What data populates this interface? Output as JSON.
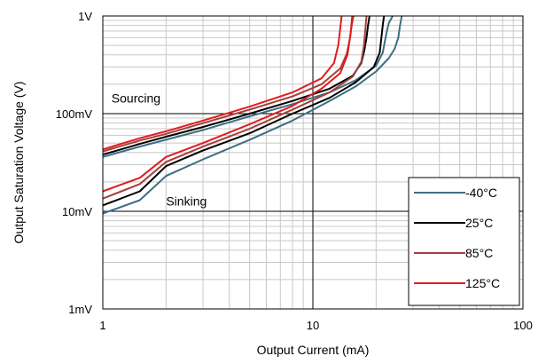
{
  "chart_data": {
    "type": "line",
    "title": "",
    "xlabel": "Output Current (mA)",
    "ylabel": "Output Saturation Voltage (V)",
    "xscale": "log",
    "yscale": "log",
    "xlim": [
      1,
      100
    ],
    "ylim": [
      0.001,
      1
    ],
    "x_ticks": [
      {
        "value": 1,
        "label": "1"
      },
      {
        "value": 10,
        "label": "10"
      },
      {
        "value": 100,
        "label": "100"
      }
    ],
    "y_ticks": [
      {
        "value": 0.001,
        "label": "1mV"
      },
      {
        "value": 0.01,
        "label": "10mV"
      },
      {
        "value": 0.1,
        "label": "100mV"
      },
      {
        "value": 1,
        "label": "1V"
      }
    ],
    "grid": true,
    "legend_position": "bottom-right",
    "annotations": [
      {
        "text": "Sourcing",
        "x": 1.1,
        "y": 0.13
      },
      {
        "text": "Sinking",
        "x": 2.0,
        "y": 0.0115
      }
    ],
    "series": [
      {
        "name": "-40°C",
        "color": "#3d6e82",
        "sourcing": {
          "x": [
            1,
            1.5,
            2,
            3,
            5,
            8,
            12,
            16,
            20,
            21.5,
            22,
            22.5,
            23,
            24
          ],
          "y": [
            0.036,
            0.046,
            0.054,
            0.068,
            0.094,
            0.125,
            0.165,
            0.22,
            0.31,
            0.42,
            0.55,
            0.7,
            0.85,
            1.0
          ]
        },
        "sinking": {
          "x": [
            1,
            1.5,
            2,
            3,
            5,
            8,
            12,
            16,
            20,
            23,
            24.5,
            25.5,
            26,
            26.5
          ],
          "y": [
            0.0095,
            0.013,
            0.023,
            0.034,
            0.054,
            0.085,
            0.135,
            0.19,
            0.27,
            0.37,
            0.46,
            0.6,
            0.8,
            1.0
          ]
        }
      },
      {
        "name": "25°C",
        "color": "#000000",
        "sourcing": {
          "x": [
            1,
            1.5,
            2,
            3,
            5,
            8,
            12,
            15.5,
            17,
            17.6,
            18,
            18.3,
            18.6
          ],
          "y": [
            0.038,
            0.049,
            0.058,
            0.073,
            0.1,
            0.135,
            0.18,
            0.245,
            0.33,
            0.45,
            0.6,
            0.8,
            1.0
          ]
        },
        "sinking": {
          "x": [
            1,
            1.5,
            2,
            3,
            5,
            8,
            12,
            16,
            19.5,
            20.8,
            21.2,
            21.5,
            21.8
          ],
          "y": [
            0.0115,
            0.016,
            0.029,
            0.042,
            0.063,
            0.1,
            0.145,
            0.21,
            0.3,
            0.42,
            0.6,
            0.8,
            1.0
          ]
        }
      },
      {
        "name": "85°C",
        "color": "#a53e3e",
        "sourcing": {
          "x": [
            1,
            1.5,
            2,
            3,
            5,
            8,
            11,
            13.5,
            14.5,
            15,
            15.3,
            15.6
          ],
          "y": [
            0.041,
            0.053,
            0.062,
            0.08,
            0.11,
            0.15,
            0.2,
            0.29,
            0.41,
            0.58,
            0.8,
            1.0
          ]
        },
        "sinking": {
          "x": [
            1,
            1.5,
            2,
            3,
            5,
            8,
            12,
            15.5,
            17,
            17.5,
            17.8,
            18
          ],
          "y": [
            0.0135,
            0.019,
            0.032,
            0.046,
            0.07,
            0.11,
            0.165,
            0.24,
            0.34,
            0.5,
            0.75,
            1.0
          ]
        }
      },
      {
        "name": "125°C",
        "color": "#e31b1b",
        "sourcing": {
          "x": [
            1,
            1.5,
            2,
            3,
            5,
            8,
            11,
            12.6,
            13.2,
            13.5,
            13.7
          ],
          "y": [
            0.043,
            0.056,
            0.066,
            0.085,
            0.118,
            0.165,
            0.23,
            0.33,
            0.5,
            0.75,
            1.0
          ]
        },
        "sinking": {
          "x": [
            1,
            1.5,
            2,
            3,
            5,
            8,
            11,
            13.5,
            14.6,
            15.1,
            15.4
          ],
          "y": [
            0.016,
            0.022,
            0.036,
            0.05,
            0.078,
            0.12,
            0.18,
            0.26,
            0.4,
            0.65,
            1.0
          ]
        }
      }
    ]
  }
}
